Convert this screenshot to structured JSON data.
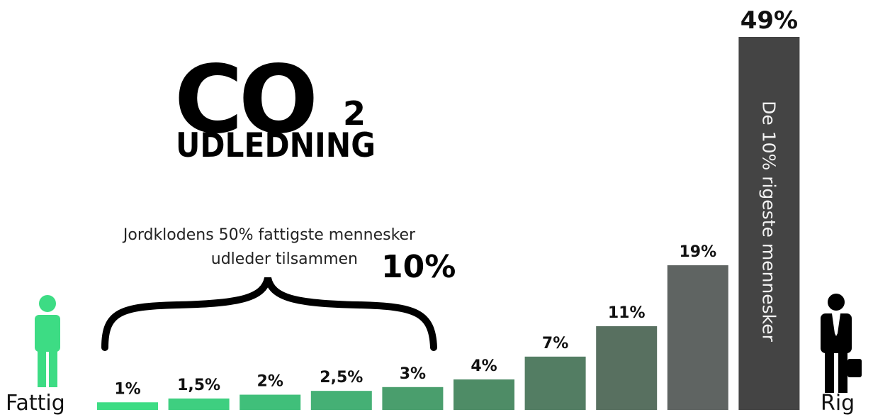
{
  "chart_data": {
    "type": "bar",
    "title": "CO",
    "title_subscript": "2",
    "subtitle": "UDLEDNING",
    "annotation": {
      "line1": "Jordklodens 50% fattigste mennesker",
      "line2": "udleder tilsammen",
      "highlight": "10%"
    },
    "bar_note": "De 10% rigeste mennesker",
    "left_label": "Fattig",
    "right_label": "Rig",
    "values": [
      1,
      1.5,
      2,
      2.5,
      3,
      4,
      7,
      11,
      19,
      49
    ],
    "value_labels": [
      "1%",
      "1,5%",
      "2%",
      "2,5%",
      "3%",
      "4%",
      "7%",
      "11%",
      "19%",
      "49%"
    ],
    "colors": [
      "#3ddc84",
      "#3ecf80",
      "#40bf7a",
      "#45b075",
      "#4a9e6d",
      "#4e8c66",
      "#537d63",
      "#587060",
      "#5f6462",
      "#444444"
    ]
  }
}
